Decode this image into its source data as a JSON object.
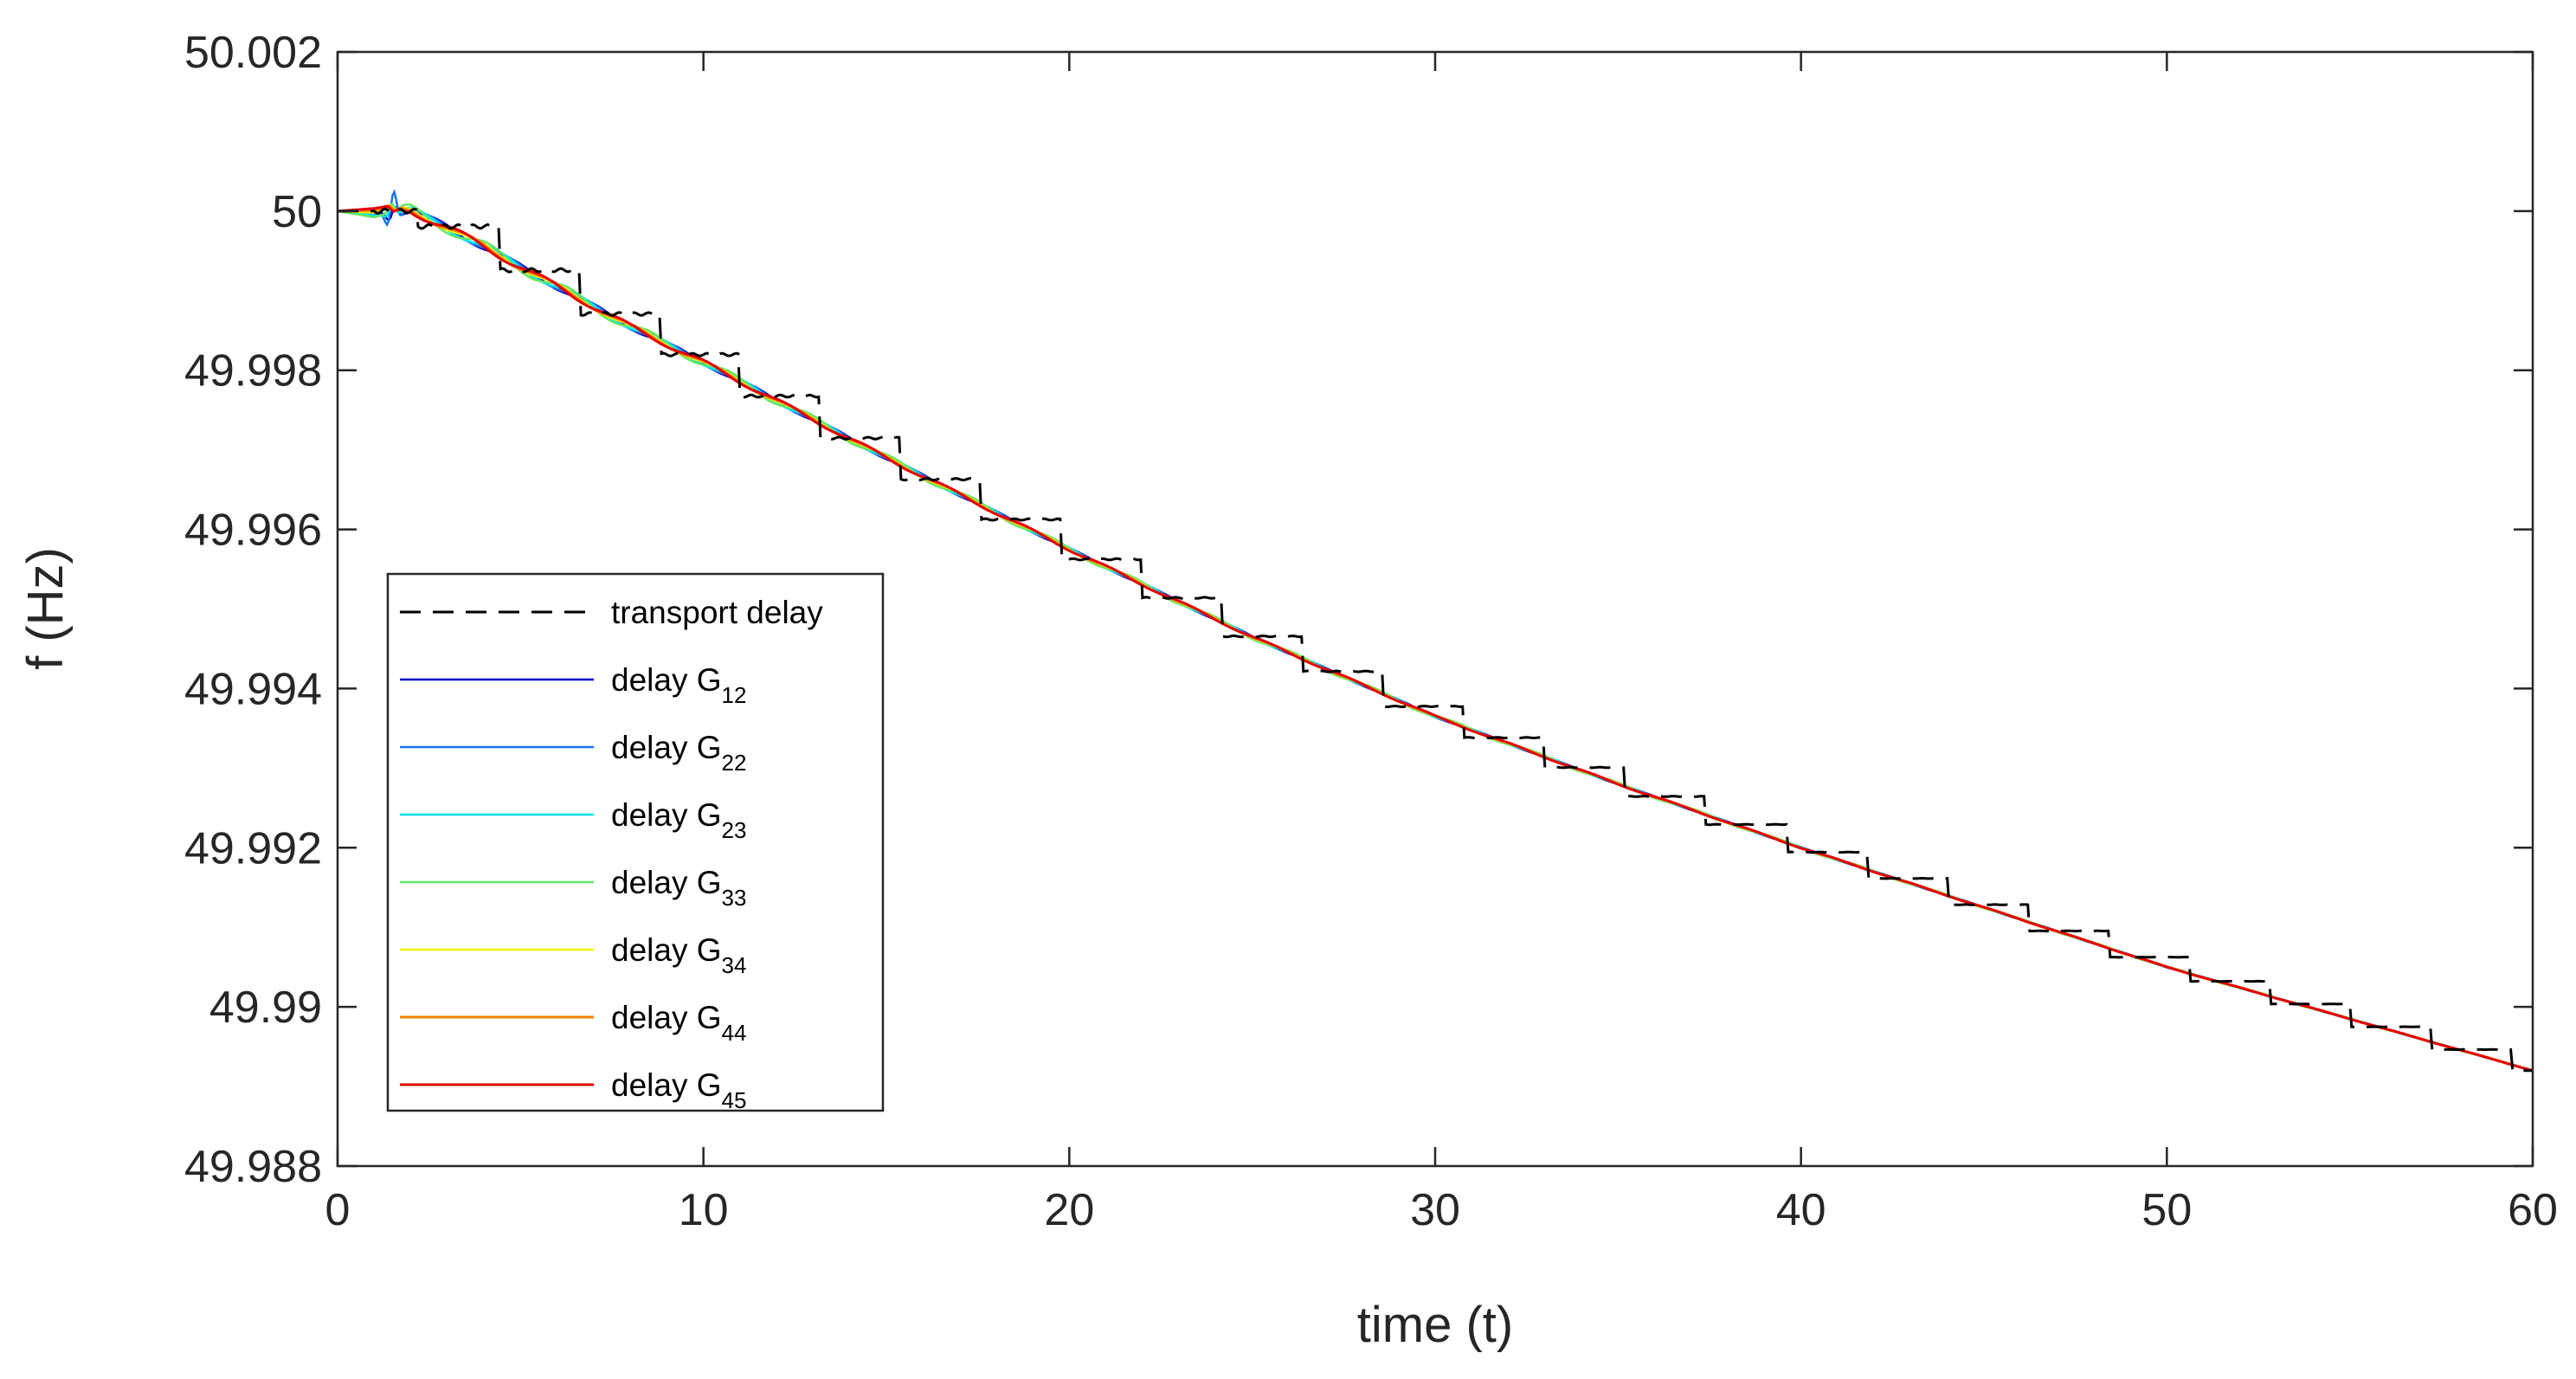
{
  "chart_data": {
    "type": "line",
    "title": "",
    "xlabel": "time (t)",
    "ylabel": "f (Hz)",
    "xlim": [
      0,
      60
    ],
    "ylim": [
      49.988,
      50.002
    ],
    "xticks": [
      "0",
      "10",
      "20",
      "30",
      "40",
      "50",
      "60"
    ],
    "yticks": [
      "49.988",
      "49.99",
      "49.992",
      "49.994",
      "49.996",
      "49.998",
      "50",
      "50.002"
    ],
    "grid": false,
    "legend_position": "lower-left inside",
    "trend": {
      "t": [
        0,
        1,
        2,
        3,
        5,
        8,
        10,
        15,
        20,
        25,
        30,
        35,
        40,
        45,
        50,
        55,
        60
      ],
      "f": [
        50.0,
        50.0,
        50.0,
        49.9998,
        49.9993,
        49.99855,
        49.9981,
        49.9969,
        49.99575,
        49.99465,
        49.99365,
        49.9928,
        49.992,
        49.99125,
        49.9905,
        49.98985,
        49.9892
      ]
    },
    "series": [
      {
        "name": "transport delay",
        "label": "transport delay",
        "sub": "",
        "color": "#000000",
        "dash": "24,14",
        "width": 3,
        "amp": 3e-05,
        "phase": 0.0,
        "damp": 0.06,
        "spike": 0.0,
        "stair": true
      },
      {
        "name": "delay G12",
        "label": "delay G",
        "sub": "12",
        "color": "#0000cc",
        "dash": "",
        "width": 2.5,
        "amp": 5e-05,
        "phase": 0.3,
        "damp": 0.05,
        "spike": 0.00012,
        "stair": false
      },
      {
        "name": "delay G22",
        "label": "delay G",
        "sub": "22",
        "color": "#1a75e6",
        "dash": "",
        "width": 2.5,
        "amp": 5e-05,
        "phase": 0.9,
        "damp": 0.05,
        "spike": 0.0003,
        "stair": false
      },
      {
        "name": "delay G23",
        "label": "delay G",
        "sub": "23",
        "color": "#00e5f0",
        "dash": "",
        "width": 2.5,
        "amp": 6e-05,
        "phase": 1.6,
        "damp": 0.05,
        "spike": 0.0001,
        "stair": false
      },
      {
        "name": "delay G33",
        "label": "delay G",
        "sub": "33",
        "color": "#66e666",
        "dash": "",
        "width": 2.5,
        "amp": 9e-05,
        "phase": 2.3,
        "damp": 0.045,
        "spike": 8e-05,
        "stair": false
      },
      {
        "name": "delay G34",
        "label": "delay G",
        "sub": "34",
        "color": "#f2f200",
        "dash": "",
        "width": 2.5,
        "amp": 5e-05,
        "phase": 3.0,
        "damp": 0.05,
        "spike": 5e-05,
        "stair": false
      },
      {
        "name": "delay G44",
        "label": "delay G",
        "sub": "44",
        "color": "#f28000",
        "dash": "",
        "width": 3,
        "amp": 5e-05,
        "phase": 3.6,
        "damp": 0.05,
        "spike": 4e-05,
        "stair": false
      },
      {
        "name": "delay G45",
        "label": "delay G",
        "sub": "45",
        "color": "#e60000",
        "dash": "",
        "width": 3,
        "amp": 5e-05,
        "phase": 4.2,
        "damp": 0.05,
        "spike": 4e-05,
        "stair": false
      }
    ]
  }
}
